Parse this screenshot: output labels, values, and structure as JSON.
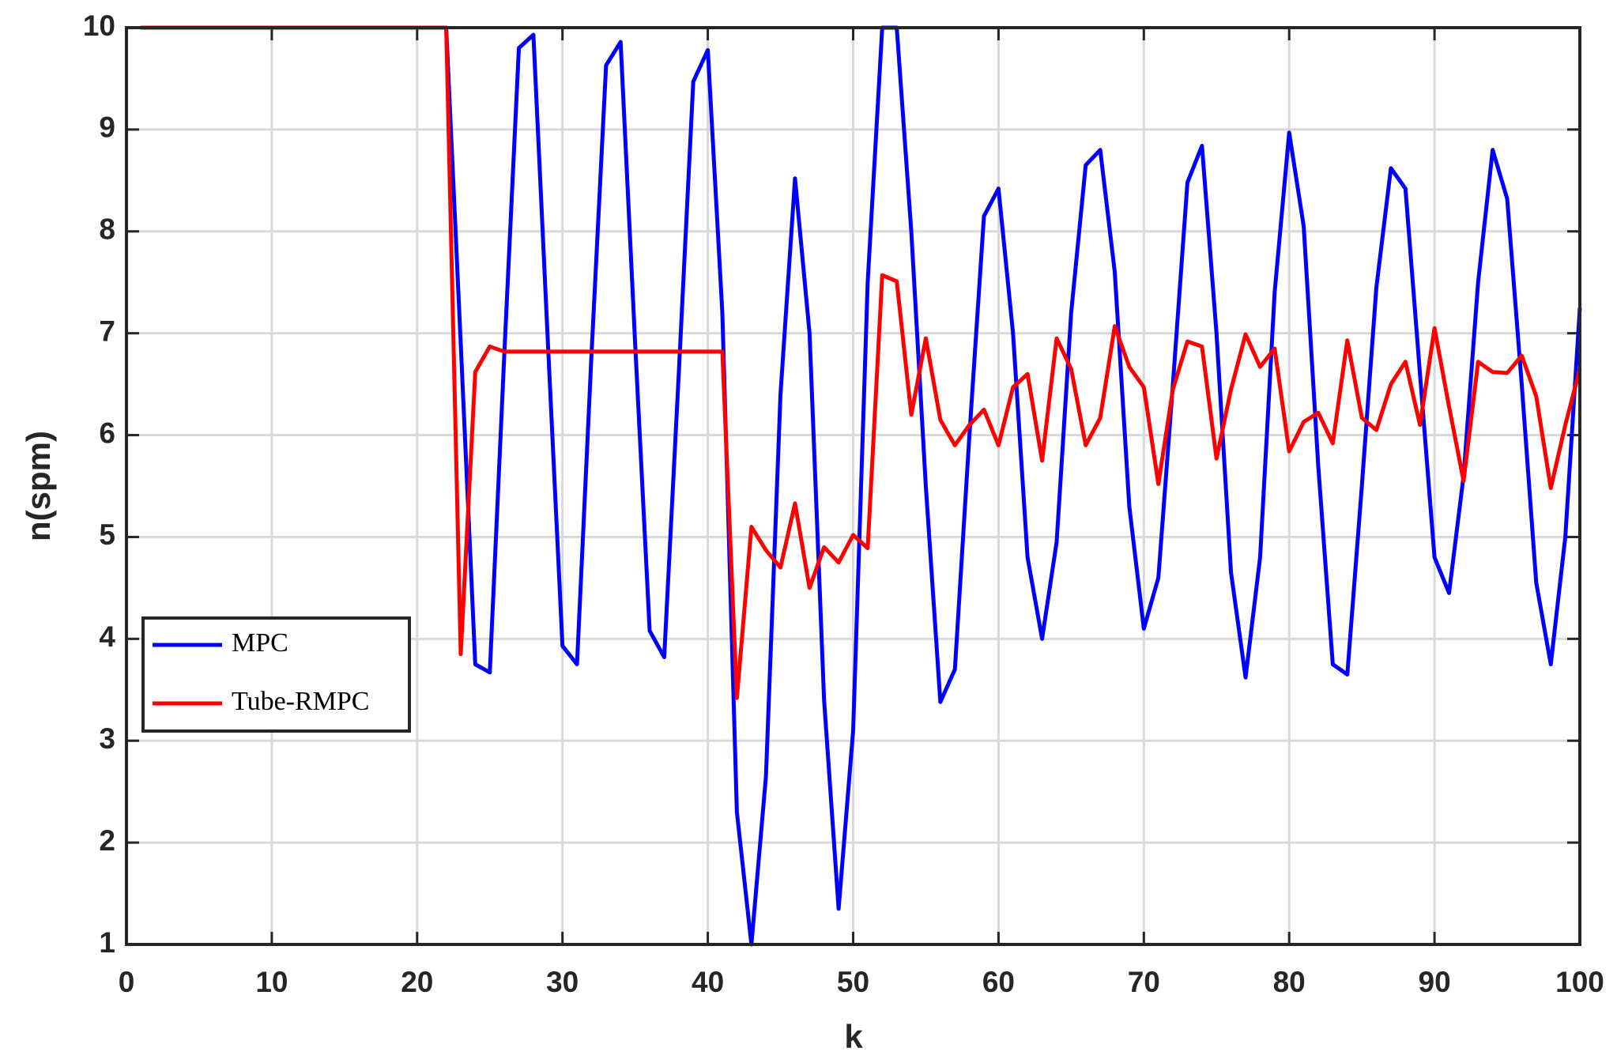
{
  "chart_data": {
    "type": "line",
    "x_label": "k",
    "y_label": "n(spm)",
    "xlim": [
      0,
      100
    ],
    "xticks": [
      0,
      10,
      20,
      30,
      40,
      50,
      60,
      70,
      80,
      90,
      100
    ],
    "ylim": [
      1,
      10
    ],
    "yticks": [
      1,
      2,
      3,
      4,
      5,
      6,
      7,
      8,
      9,
      10
    ],
    "grid": true,
    "legend": "west",
    "x": [
      1,
      2,
      3,
      4,
      5,
      6,
      7,
      8,
      9,
      10,
      11,
      12,
      13,
      14,
      15,
      16,
      17,
      18,
      19,
      20,
      21,
      22,
      23,
      24,
      25,
      26,
      27,
      28,
      29,
      30,
      31,
      32,
      33,
      34,
      35,
      36,
      37,
      38,
      39,
      40,
      41,
      42,
      43,
      44,
      45,
      46,
      47,
      48,
      49,
      50,
      51,
      52,
      53,
      54,
      55,
      56,
      57,
      58,
      59,
      60,
      61,
      62,
      63,
      64,
      65,
      66,
      67,
      68,
      69,
      70,
      71,
      72,
      73,
      74,
      75,
      76,
      77,
      78,
      79,
      80,
      81,
      82,
      83,
      84,
      85,
      86,
      87,
      88,
      89,
      90,
      91,
      92,
      93,
      94,
      95,
      96,
      97,
      98,
      99,
      100
    ],
    "series": [
      {
        "name": "MPC",
        "color": "#0000ff",
        "values": [
          10,
          10,
          10,
          10,
          10,
          10,
          10,
          10,
          10,
          10,
          10,
          10,
          10,
          10,
          10,
          10,
          10,
          10,
          10,
          10,
          10,
          10,
          6.9,
          3.75,
          3.67,
          6.8,
          9.8,
          9.93,
          6.9,
          3.93,
          3.75,
          6.8,
          9.63,
          9.86,
          6.9,
          4.08,
          3.82,
          6.6,
          9.47,
          9.78,
          7.2,
          2.3,
          1.0,
          2.65,
          6.4,
          8.52,
          7.0,
          3.4,
          1.35,
          3.1,
          7.5,
          10,
          10,
          8.0,
          5.5,
          3.38,
          3.7,
          6.0,
          8.15,
          8.42,
          7.0,
          4.8,
          4.0,
          4.95,
          7.2,
          8.65,
          8.8,
          7.6,
          5.3,
          4.1,
          4.6,
          6.5,
          8.48,
          8.84,
          7.0,
          4.65,
          3.62,
          4.8,
          7.4,
          8.97,
          8.05,
          5.7,
          3.75,
          3.65,
          5.5,
          7.45,
          8.62,
          8.42,
          6.6,
          4.8,
          4.45,
          5.6,
          7.5,
          8.8,
          8.32,
          6.5,
          4.55,
          3.75,
          5.0,
          7.25
        ]
      },
      {
        "name": "Tube-RMPC",
        "color": "#ff0000",
        "values": [
          10,
          10,
          10,
          10,
          10,
          10,
          10,
          10,
          10,
          10,
          10,
          10,
          10,
          10,
          10,
          10,
          10,
          10,
          10,
          10,
          10,
          10,
          3.85,
          6.62,
          6.87,
          6.82,
          6.82,
          6.82,
          6.82,
          6.82,
          6.82,
          6.82,
          6.82,
          6.82,
          6.82,
          6.82,
          6.82,
          6.82,
          6.82,
          6.82,
          6.82,
          3.42,
          5.1,
          4.87,
          4.7,
          5.33,
          4.5,
          4.9,
          4.75,
          5.02,
          4.89,
          7.57,
          7.51,
          6.2,
          6.95,
          6.15,
          5.9,
          6.1,
          6.25,
          5.9,
          6.47,
          6.6,
          5.75,
          6.95,
          6.65,
          5.9,
          6.17,
          7.07,
          6.67,
          6.47,
          5.52,
          6.45,
          6.92,
          6.87,
          5.77,
          6.45,
          6.99,
          6.67,
          6.85,
          5.84,
          6.13,
          6.22,
          5.92,
          6.93,
          6.17,
          6.05,
          6.5,
          6.72,
          6.1,
          7.05,
          6.28,
          5.55,
          6.72,
          6.62,
          6.61,
          6.78,
          6.38,
          5.48,
          6.1,
          6.65
        ]
      }
    ]
  }
}
